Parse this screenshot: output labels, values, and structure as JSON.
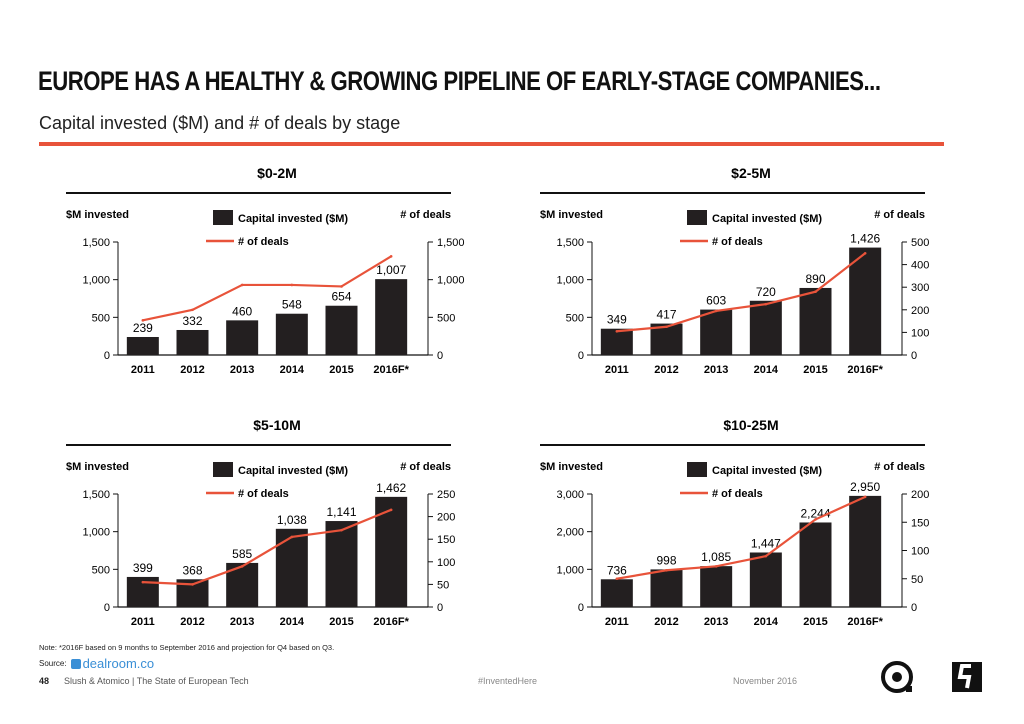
{
  "header": {
    "title": "EUROPE HAS A HEALTHY & GROWING PIPELINE OF EARLY-STAGE COMPANIES...",
    "subtitle": "Capital invested ($M) and # of deals by stage"
  },
  "colors": {
    "accent": "#e8533a",
    "bar": "#231f20"
  },
  "legend": {
    "bar": "Capital invested ($M)",
    "line": "# of deals"
  },
  "chart_data": [
    {
      "type": "bar",
      "title": "$0-2M",
      "ylabel": "$M invested",
      "y2label": "# of deals",
      "categories": [
        "2011",
        "2012",
        "2013",
        "2014",
        "2015",
        "2016F*"
      ],
      "ylim": [
        0,
        1500
      ],
      "yticks": [
        "0",
        "500",
        "1,000",
        "1,500"
      ],
      "y2lim": [
        0,
        1500
      ],
      "y2ticks": [
        "0",
        "500",
        "1,000",
        "1,500"
      ],
      "series": [
        {
          "name": "Capital invested ($M)",
          "values": [
            239,
            332,
            460,
            548,
            654,
            1007
          ],
          "labels": [
            "239",
            "332",
            "460",
            "548",
            "654",
            "1,007"
          ]
        },
        {
          "name": "# of deals",
          "values": [
            460,
            600,
            930,
            930,
            910,
            1310
          ]
        }
      ]
    },
    {
      "type": "bar",
      "title": "$2-5M",
      "ylabel": "$M invested",
      "y2label": "# of deals",
      "categories": [
        "2011",
        "2012",
        "2013",
        "2014",
        "2015",
        "2016F*"
      ],
      "ylim": [
        0,
        1500
      ],
      "yticks": [
        "0",
        "500",
        "1,000",
        "1,500"
      ],
      "y2lim": [
        0,
        500
      ],
      "y2ticks": [
        "0",
        "100",
        "200",
        "300",
        "400",
        "500"
      ],
      "series": [
        {
          "name": "Capital invested ($M)",
          "values": [
            349,
            417,
            603,
            720,
            890,
            1426
          ],
          "labels": [
            "349",
            "417",
            "603",
            "720",
            "890",
            "1,426"
          ]
        },
        {
          "name": "# of deals",
          "values": [
            105,
            125,
            195,
            225,
            280,
            450
          ]
        }
      ]
    },
    {
      "type": "bar",
      "title": "$5-10M",
      "ylabel": "$M invested",
      "y2label": "# of deals",
      "categories": [
        "2011",
        "2012",
        "2013",
        "2014",
        "2015",
        "2016F*"
      ],
      "ylim": [
        0,
        1500
      ],
      "yticks": [
        "0",
        "500",
        "1,000",
        "1,500"
      ],
      "y2lim": [
        0,
        250
      ],
      "y2ticks": [
        "0",
        "50",
        "100",
        "150",
        "200",
        "250"
      ],
      "series": [
        {
          "name": "Capital invested ($M)",
          "values": [
            399,
            368,
            585,
            1038,
            1141,
            1462
          ],
          "labels": [
            "399",
            "368",
            "585",
            "1,038",
            "1,141",
            "1,462"
          ]
        },
        {
          "name": "# of deals",
          "values": [
            55,
            50,
            90,
            155,
            170,
            215
          ]
        }
      ]
    },
    {
      "type": "bar",
      "title": "$10-25M",
      "ylabel": "$M invested",
      "y2label": "# of deals",
      "categories": [
        "2011",
        "2012",
        "2013",
        "2014",
        "2015",
        "2016F*"
      ],
      "ylim": [
        0,
        3000
      ],
      "yticks": [
        "0",
        "1,000",
        "2,000",
        "3,000"
      ],
      "y2lim": [
        0,
        200
      ],
      "y2ticks": [
        "0",
        "50",
        "100",
        "150",
        "200"
      ],
      "series": [
        {
          "name": "Capital invested ($M)",
          "values": [
            736,
            998,
            1085,
            1447,
            2244,
            2950
          ],
          "labels": [
            "736",
            "998",
            "1,085",
            "1,447",
            "2,244",
            "2,950"
          ]
        },
        {
          "name": "# of deals",
          "values": [
            50,
            65,
            72,
            90,
            155,
            195
          ]
        }
      ]
    }
  ],
  "footer": {
    "note": "Note: *2016F based on 9 months to September 2016 and projection for Q4 based on Q3.",
    "source_label": "Source:",
    "source_name": "dealroom.co",
    "page": "48",
    "org": "Slush & Atomico  |  The State of European Tech",
    "hashtag": "#InventedHere",
    "date": "November 2016"
  }
}
